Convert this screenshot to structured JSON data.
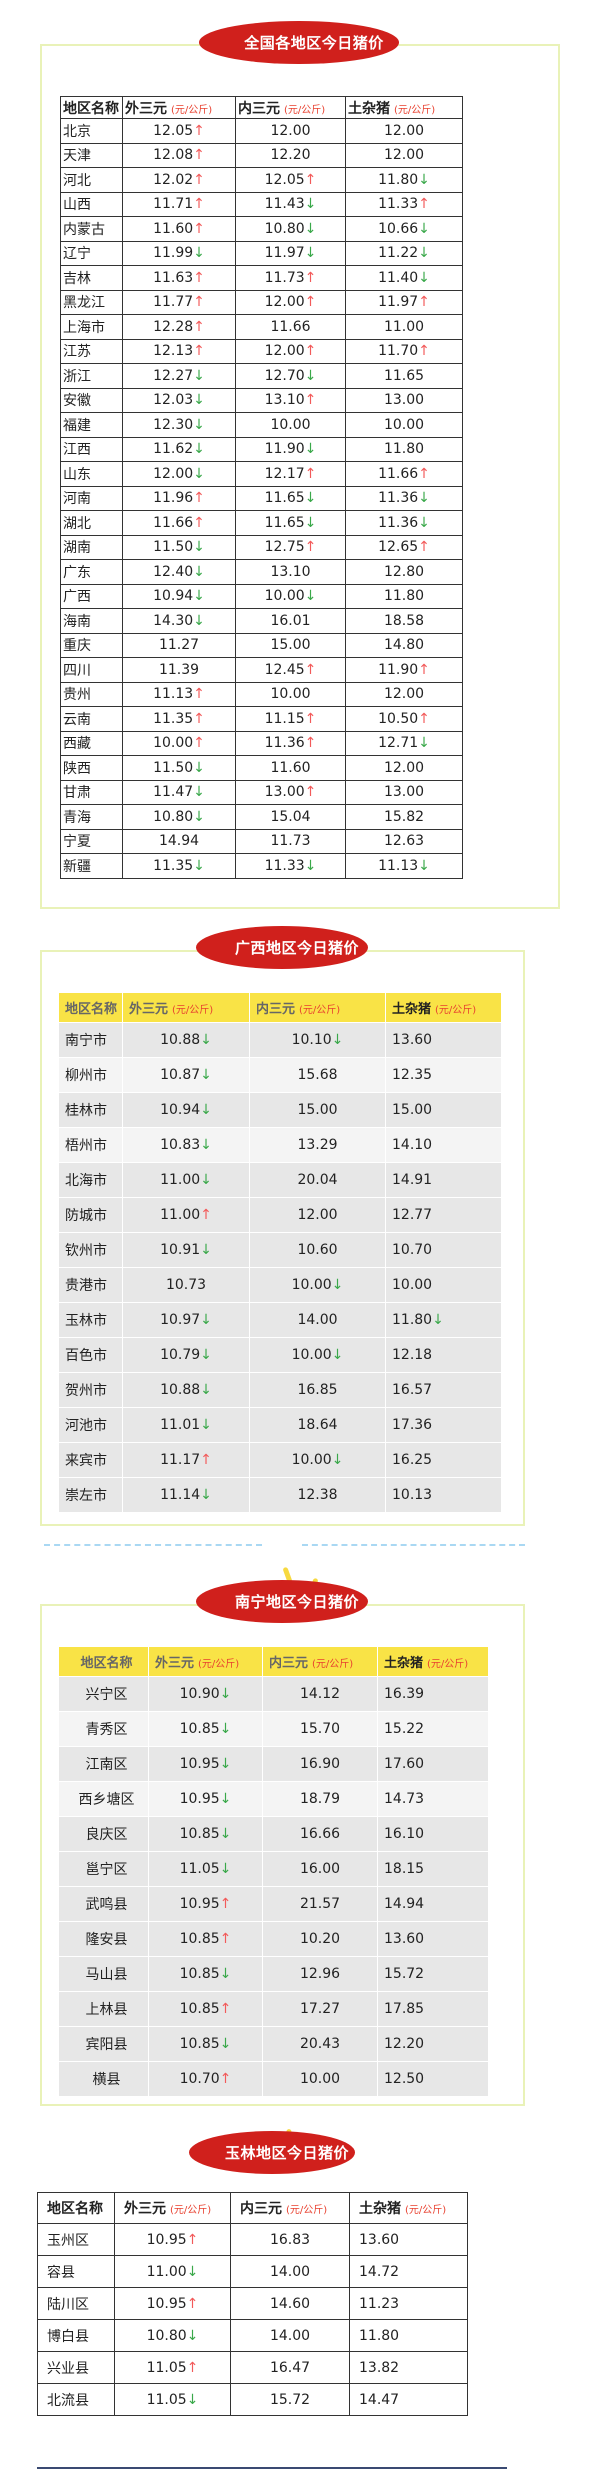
{
  "colors": {
    "pill": "#d0201c",
    "header_bg": "#f9e346",
    "up": "#f25a5a",
    "down": "#3aa84a",
    "panel_border": "#e9f2b8"
  },
  "headers": {
    "region": "地区名称",
    "wai": "外三元",
    "nei": "内三元",
    "tu": "土杂猪",
    "unit": "(元/公斤)"
  },
  "national": {
    "title": "全国各地区今日猪价",
    "rows": [
      [
        "北京",
        "12.05↑",
        "12.00",
        "12.00"
      ],
      [
        "天津",
        "12.08↑",
        "12.20",
        "12.00"
      ],
      [
        "河北",
        "12.02↑",
        "12.05↑",
        "11.80↓"
      ],
      [
        "山西",
        "11.71↑",
        "11.43↓",
        "11.33↑"
      ],
      [
        "内蒙古",
        "11.60↑",
        "10.80↓",
        "10.66↓"
      ],
      [
        "辽宁",
        "11.99↓",
        "11.97↓",
        "11.22↓"
      ],
      [
        "吉林",
        "11.63↑",
        "11.73↑",
        "11.40↓"
      ],
      [
        "黑龙江",
        "11.77↑",
        "12.00↑",
        "11.97↑"
      ],
      [
        "上海市",
        "12.28↑",
        "11.66",
        "11.00"
      ],
      [
        "江苏",
        "12.13↑",
        "12.00↑",
        "11.70↑"
      ],
      [
        "浙江",
        "12.27↓",
        "12.70↓",
        "11.65"
      ],
      [
        "安徽",
        "12.03↓",
        "13.10↑",
        "13.00"
      ],
      [
        "福建",
        "12.30↓",
        "10.00",
        "10.00"
      ],
      [
        "江西",
        "11.62↓",
        "11.90↓",
        "11.80"
      ],
      [
        "山东",
        "12.00↓",
        "12.17↑",
        "11.66↑"
      ],
      [
        "河南",
        "11.96↑",
        "11.65↓",
        "11.36↓"
      ],
      [
        "湖北",
        "11.66↑",
        "11.65↓",
        "11.36↓"
      ],
      [
        "湖南",
        "11.50↓",
        "12.75↑",
        "12.65↑"
      ],
      [
        "广东",
        "12.40↓",
        "13.10",
        "12.80"
      ],
      [
        "广西",
        "10.94↓",
        "10.00↓",
        "11.80"
      ],
      [
        "海南",
        "14.30↓",
        "16.01",
        "18.58"
      ],
      [
        "重庆",
        "11.27",
        "15.00",
        "14.80"
      ],
      [
        "四川",
        "11.39",
        "12.45↑",
        "11.90↑"
      ],
      [
        "贵州",
        "11.13↑",
        "10.00",
        "12.00"
      ],
      [
        "云南",
        "11.35↑",
        "11.15↑",
        "10.50↑"
      ],
      [
        "西藏",
        "10.00↑",
        "11.36↑",
        "12.71↓"
      ],
      [
        "陕西",
        "11.50↓",
        "11.60",
        "12.00"
      ],
      [
        "甘肃",
        "11.47↓",
        "13.00↑",
        "13.00"
      ],
      [
        "青海",
        "10.80↓",
        "15.04",
        "15.82"
      ],
      [
        "宁夏",
        "14.94",
        "11.73",
        "12.63"
      ],
      [
        "新疆",
        "11.35↓",
        "11.33↓",
        "11.13↓"
      ]
    ]
  },
  "guangxi": {
    "title": "广西地区今日猪价",
    "rows": [
      [
        "南宁市",
        "10.88↓",
        "10.10↓",
        "13.60"
      ],
      [
        "柳州市",
        "10.87↓",
        "15.68",
        "12.35"
      ],
      [
        "桂林市",
        "10.94↓",
        "15.00",
        "15.00"
      ],
      [
        "梧州市",
        "10.83↓",
        "13.29",
        "14.10"
      ],
      [
        "北海市",
        "11.00↓",
        "20.04",
        "14.91"
      ],
      [
        "防城市",
        "11.00↑",
        "12.00",
        "12.77"
      ],
      [
        "钦州市",
        "10.91↓",
        "10.60",
        "10.70"
      ],
      [
        "贵港市",
        "10.73",
        "10.00↓",
        "10.00"
      ],
      [
        "玉林市",
        "10.97↓",
        "14.00",
        "11.80↓"
      ],
      [
        "百色市",
        "10.79↓",
        "10.00↓",
        "12.18"
      ],
      [
        "贺州市",
        "10.88↓",
        "16.85",
        "16.57"
      ],
      [
        "河池市",
        "11.01↓",
        "18.64",
        "17.36"
      ],
      [
        "来宾市",
        "11.17↑",
        "10.00↓",
        "16.25"
      ],
      [
        "崇左市",
        "11.14↓",
        "12.38",
        "10.13"
      ]
    ]
  },
  "nanning": {
    "title": "南宁地区今日猪价",
    "rows": [
      [
        "兴宁区",
        "10.90↓",
        "14.12",
        "16.39"
      ],
      [
        "青秀区",
        "10.85↓",
        "15.70",
        "15.22"
      ],
      [
        "江南区",
        "10.95↓",
        "16.90",
        "17.60"
      ],
      [
        "西乡塘区",
        "10.95↓",
        "18.79",
        "14.73"
      ],
      [
        "良庆区",
        "10.85↓",
        "16.66",
        "16.10"
      ],
      [
        "邕宁区",
        "11.05↓",
        "16.00",
        "18.15"
      ],
      [
        "武鸣县",
        "10.95↑",
        "21.57",
        "14.94"
      ],
      [
        "隆安县",
        "10.85↑",
        "10.20",
        "13.60"
      ],
      [
        "马山县",
        "10.85↓",
        "12.96",
        "15.72"
      ],
      [
        "上林县",
        "10.85↑",
        "17.27",
        "17.85"
      ],
      [
        "宾阳县",
        "10.85↓",
        "20.43",
        "12.20"
      ],
      [
        "横县",
        "10.70↑",
        "10.00",
        "12.50"
      ]
    ]
  },
  "yulin": {
    "title": "玉林地区今日猪价",
    "rows": [
      [
        "玉州区",
        "10.95↑",
        "16.83",
        "13.60"
      ],
      [
        "容县",
        "11.00↓",
        "14.00",
        "14.72"
      ],
      [
        "陆川区",
        "10.95↑",
        "14.60",
        "11.23"
      ],
      [
        "博白县",
        "10.80↓",
        "14.00",
        "11.80"
      ],
      [
        "兴业县",
        "11.05↑",
        "16.47",
        "13.82"
      ],
      [
        "北流县",
        "11.05↓",
        "15.72",
        "14.47"
      ]
    ]
  }
}
